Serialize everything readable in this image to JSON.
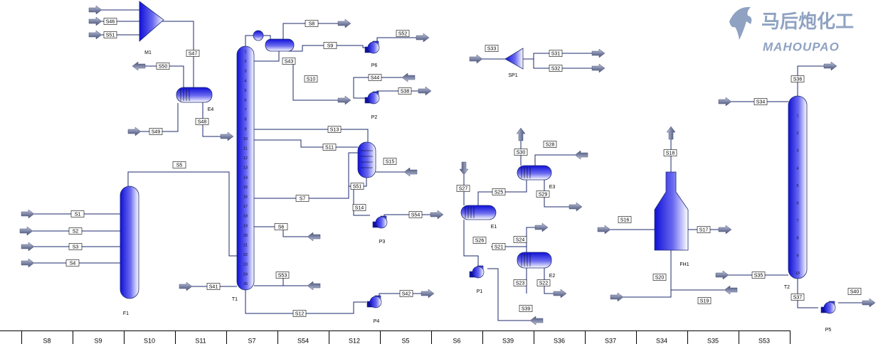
{
  "watermark": {
    "chinese": "马后炮化工",
    "latin": "MAHOUPAO"
  },
  "streams": [
    "S46",
    "S51",
    "S47",
    "S50",
    "S48",
    "S49",
    "S5",
    "S1",
    "S2",
    "S3",
    "S4",
    "S41",
    "S8",
    "S9",
    "S43",
    "S10",
    "S13",
    "S11",
    "S7",
    "S6",
    "S53",
    "S12",
    "S52",
    "S44",
    "S38",
    "S51",
    "S15",
    "S14",
    "S54",
    "S42",
    "S33",
    "S31",
    "S32",
    "S28",
    "S30",
    "S27",
    "S25",
    "S29",
    "S26",
    "S24",
    "S21",
    "S23",
    "S22",
    "S39",
    "S18",
    "S16",
    "S17",
    "S20",
    "S19",
    "S36",
    "S34",
    "S35",
    "S37",
    "S40"
  ],
  "equipment": [
    "M1",
    "E4",
    "F1",
    "T1",
    "P6",
    "P2",
    "P3",
    "P4",
    "SP1",
    "E3",
    "E1",
    "P1",
    "E2",
    "FH1",
    "T2",
    "P5"
  ],
  "t1_trays": [
    1,
    2,
    3,
    4,
    5,
    6,
    7,
    8,
    9,
    10,
    11,
    12,
    13,
    14,
    15,
    16,
    17,
    18,
    19,
    20,
    21,
    22,
    23,
    24,
    25
  ],
  "t2_trays": [
    1,
    2,
    3,
    4,
    5,
    6,
    7,
    8,
    9,
    10
  ],
  "table": {
    "header": [
      "S8",
      "S9",
      "S10",
      "S11",
      "S7",
      "S54",
      "S12",
      "S5",
      "S6",
      "S39",
      "S36",
      "S37",
      "S34",
      "S35",
      "S53"
    ]
  }
}
